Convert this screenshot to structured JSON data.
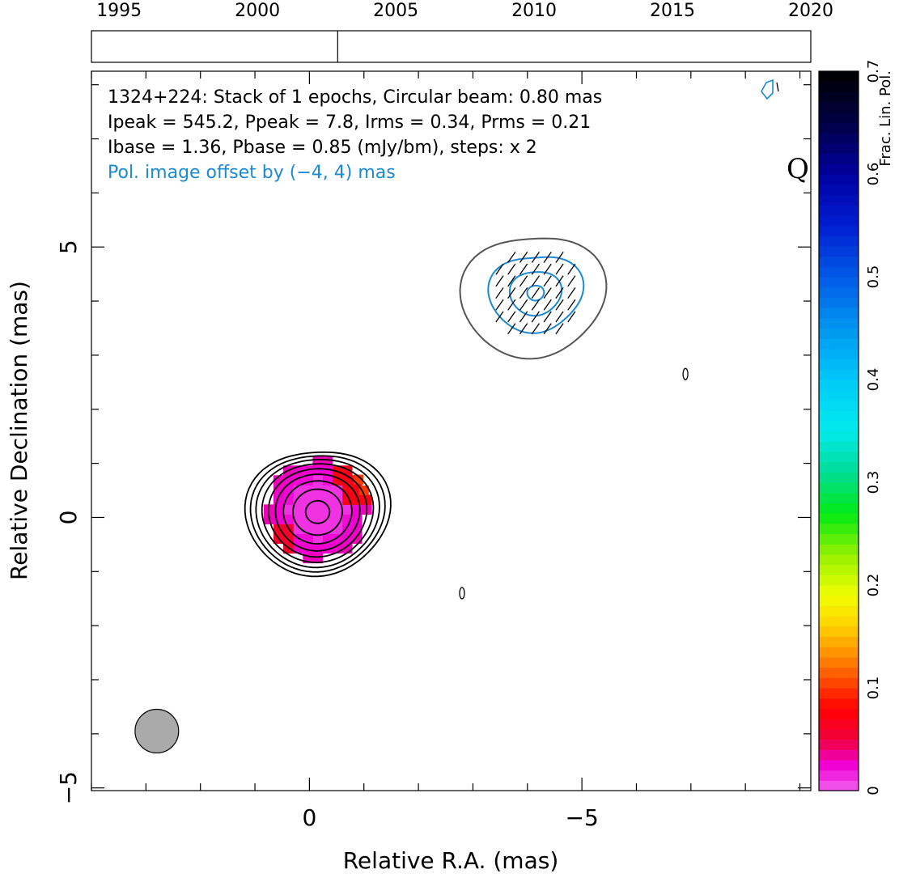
{
  "chart_data": {
    "type": "heatmap",
    "source": "1324+224",
    "band": "Q",
    "title_lines": [
      "1324+224: Stack of 1 epochs, Circular beam: 0.80 mas",
      "Ipeak = 545.2, Ppeak = 7.8, Irms = 0.34, Prms = 0.21",
      "Ibase = 1.36, Pbase = 0.85 (mJy/bm), steps: x 2"
    ],
    "offset_note": "Pol. image offset by (−4, 4) mas",
    "xlabel": "Relative R.A. (mas)",
    "ylabel": "Relative Declination (mas)",
    "xlim": [
      4,
      -9.2
    ],
    "ylim": [
      -5.05,
      8.25
    ],
    "x_ticks": [
      {
        "value": 0,
        "label": "0"
      },
      {
        "value": -5,
        "label": "−5"
      }
    ],
    "y_ticks": [
      {
        "value": 5,
        "label": "5"
      },
      {
        "value": 0,
        "label": "0"
      },
      {
        "value": -5,
        "label": "−5"
      }
    ],
    "epoch_axis": {
      "range": [
        1994,
        2020
      ],
      "ticks": [
        "1995",
        "2000",
        "2005",
        "2010",
        "2015",
        "2020"
      ],
      "epochs": [
        2002.9
      ]
    },
    "colorbar": {
      "label": "Frac. Lin. Pol.",
      "range": [
        0,
        0.7
      ],
      "ticks": [
        "0",
        "0.1",
        "0.2",
        "0.3",
        "0.4",
        "0.5",
        "0.6",
        "0.7"
      ]
    },
    "beam": {
      "major_mas": 0.8,
      "center": [
        2.8,
        -3.95
      ]
    },
    "stokes_i_contours_mas": [
      0.22,
      0.45,
      0.62,
      0.76,
      0.88,
      0.99,
      1.09,
      1.18,
      1.27
    ],
    "stokes_i_core": [
      -0.15,
      0.15
    ],
    "polarized_component": {
      "offset_mas": [
        -4,
        4
      ],
      "outer_contour_radius_mas": 1.25,
      "pol_contour_radii_mas": [
        0.15,
        0.45,
        0.8
      ]
    }
  },
  "colors": {
    "stokes_i_contour": "#000000",
    "pol_contour": "#1a8ad4",
    "outer_contour": "#555555",
    "beam_fill": "#aaaaaa",
    "offset_text": "#1a8ad4"
  }
}
